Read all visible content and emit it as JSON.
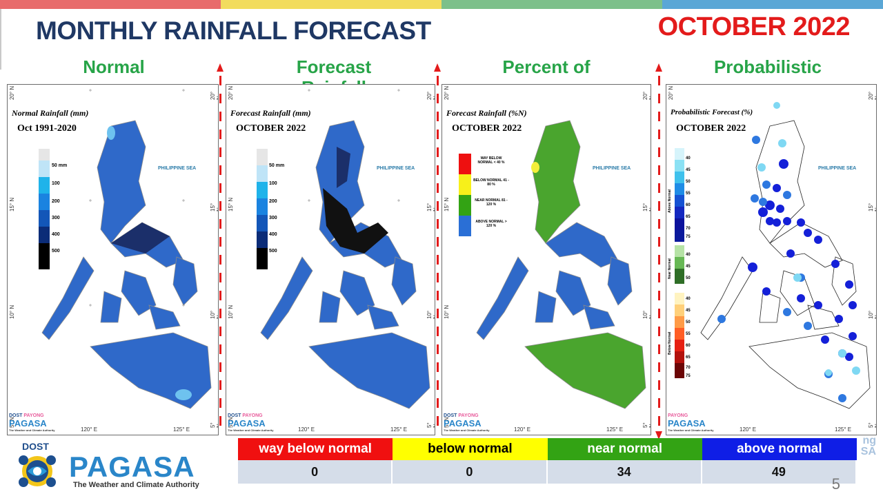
{
  "title": "MONTHLY RAINFALL FORECAST",
  "date": "OCTOBER 2022",
  "colors": {
    "bar": [
      "#e86b6b",
      "#f2dc5d",
      "#7cc08a",
      "#5aa7d6"
    ],
    "title": "#1f3864",
    "accent_red": "#e31b1b",
    "label_green": "#27a448"
  },
  "panels": [
    {
      "label": "Normal",
      "map_title": "Normal Rainfall (mm)",
      "map_subtitle": "Oct 1991-2020",
      "legend": [
        "50 mm",
        "100",
        "200",
        "300",
        "400",
        "500"
      ],
      "sea_label": "PHILIPPINE SEA",
      "lat_labels": [
        "20° N",
        "15° N",
        "10° N",
        "5° N"
      ],
      "lon_labels": [
        "120° E",
        "125° E"
      ],
      "logo": {
        "dost": "DOST",
        "payong": "PAYONG",
        "pagasa": "PAGASA",
        "authority": "The Weather and Climate Authority"
      }
    },
    {
      "label": "Forecast Rainfall",
      "map_title": "Forecast Rainfall (mm)",
      "map_subtitle": "OCTOBER 2022",
      "legend": [
        "50 mm",
        "100",
        "200",
        "300",
        "400",
        "500"
      ],
      "sea_label": "PHILIPPINE SEA",
      "lat_labels": [
        "20° N",
        "15° N",
        "10° N",
        "5° N"
      ],
      "lon_labels": [
        "120° E",
        "125° E"
      ],
      "logo": {
        "dost": "DOST",
        "payong": "PAYONG",
        "pagasa": "PAGASA",
        "authority": "The Weather and Climate Authority"
      }
    },
    {
      "label": "Percent of",
      "map_title": "Forecast Rainfall (%N)",
      "map_subtitle": "OCTOBER 2022",
      "legend": [
        "WAY BELOW NORMAL < 40 %",
        "BELOW NORMAL 41 - 80 %",
        "NEAR NORMAL 81 - 120 %",
        "ABOVE NORMAL > 120 %"
      ],
      "sea_label": "PHILIPPINE SEA",
      "lat_labels": [
        "20° N",
        "15° N",
        "10° N",
        "5° N"
      ],
      "lon_labels": [
        "120° E",
        "125° E"
      ],
      "logo": {
        "dost": "DOST",
        "payong": "PAYONG",
        "pagasa": "PAGASA",
        "authority": "The Weather and Climate Authority"
      }
    },
    {
      "label": "Probabilistic",
      "map_title": "Probabilistic Forecast (%)",
      "map_subtitle": "OCTOBER 2022",
      "legend_groups": [
        {
          "name": "Above Normal",
          "values": [
            "40",
            "45",
            "50",
            "55",
            "60",
            "65",
            "70",
            "75"
          ]
        },
        {
          "name": "Near Normal",
          "values": [
            "40",
            "45",
            "50"
          ]
        },
        {
          "name": "Below Normal",
          "values": [
            "40",
            "45",
            "50",
            "55",
            "60",
            "65",
            "70",
            "75"
          ]
        }
      ],
      "sea_label": "PHILIPPINE SEA",
      "lat_labels": [
        "20° N",
        "15° N",
        "10° N",
        "5° N"
      ],
      "lon_labels": [
        "120° E",
        "125° E"
      ],
      "logo": {
        "dost": "DOST",
        "payong": "PAYONG",
        "pagasa": "PAGASA",
        "authority": "The Weather and Climate Authority"
      }
    }
  ],
  "brand": {
    "dost": "DOST",
    "name": "PAGASA",
    "tagline": "The Weather and Climate Authority"
  },
  "summary": {
    "headers": [
      "way below normal",
      "below normal",
      "near normal",
      "above normal"
    ],
    "header_colors": [
      "#f01010",
      "#ffff00",
      "#33a314",
      "#0f1ee6"
    ],
    "header_text_colors": [
      "#ffffff",
      "#000000",
      "#ffffff",
      "#ffffff"
    ],
    "values": [
      "0",
      "0",
      "34",
      "49"
    ]
  },
  "ghost_text": [
    "ng",
    "SA"
  ],
  "page_number": "5"
}
